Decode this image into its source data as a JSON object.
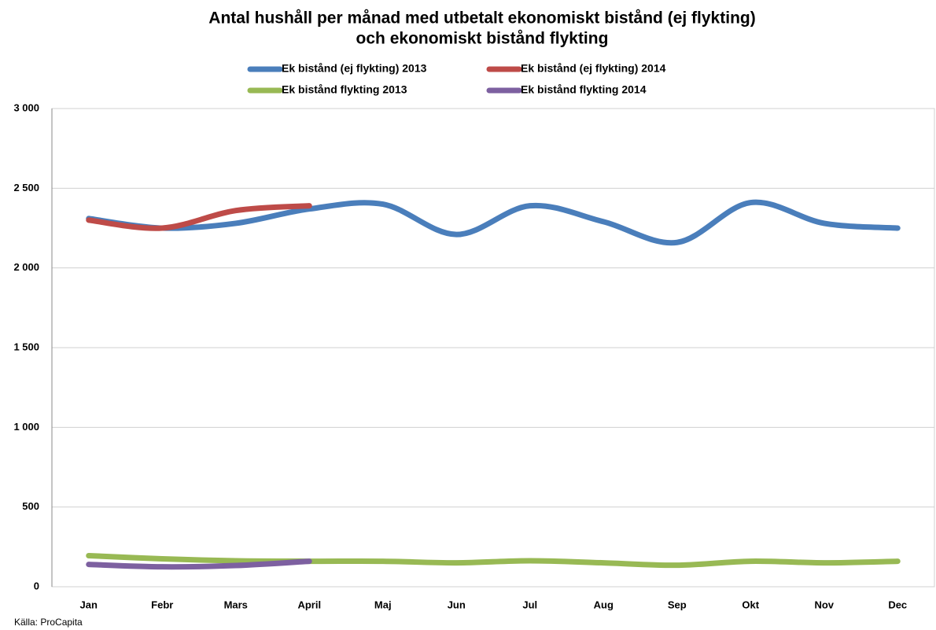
{
  "chart_data": {
    "type": "line",
    "title": "Antal hushåll per månad med utbetalt ekonomiskt bistånd (ej flykting)",
    "subtitle": "och ekonomiskt bistånd flykting",
    "source": "Källa: ProCapita",
    "categories": [
      "Jan",
      "Febr",
      "Mars",
      "April",
      "Maj",
      "Jun",
      "Jul",
      "Aug",
      "Sep",
      "Okt",
      "Nov",
      "Dec"
    ],
    "series": [
      {
        "name": "Ek bistånd (ej flykting) 2013",
        "color": "#4a7ebb",
        "values": [
          2310,
          2250,
          2280,
          2370,
          2400,
          2210,
          2390,
          2290,
          2160,
          2410,
          2280,
          2250
        ]
      },
      {
        "name": "Ek bistånd (ej flykting) 2014",
        "color": "#be4b48",
        "values": [
          2300,
          2250,
          2360,
          2390,
          null,
          null,
          null,
          null,
          null,
          null,
          null,
          null
        ]
      },
      {
        "name": "Ek bistånd flykting 2013",
        "color": "#98b954",
        "values": [
          195,
          175,
          163,
          160,
          160,
          150,
          163,
          150,
          135,
          160,
          150,
          160
        ]
      },
      {
        "name": "Ek bistånd flykting 2014",
        "color": "#7d60a0",
        "values": [
          140,
          125,
          133,
          160,
          null,
          null,
          null,
          null,
          null,
          null,
          null,
          null
        ]
      }
    ],
    "ylim": [
      0,
      3000
    ],
    "yticks": [
      0,
      500,
      {
        "value": 1000,
        "label": "1 000"
      },
      {
        "value": 1500,
        "label": "1 500"
      },
      {
        "value": 2000,
        "label": "2 000"
      },
      {
        "value": 2500,
        "label": "2 500"
      },
      {
        "value": 3000,
        "label": "3 000"
      }
    ],
    "grid": true,
    "smooth": true
  }
}
